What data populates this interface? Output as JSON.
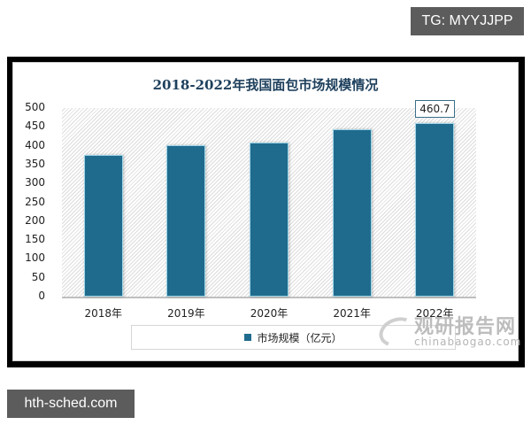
{
  "overlay": {
    "top_tag": "TG: MYYJJPP",
    "bottom_tag": "hth-sched.com"
  },
  "watermark": {
    "cn": "观研报告网",
    "en": "chinabaogao.com"
  },
  "colors": {
    "bar": "#1f6b8e",
    "title": "#1d3f5c",
    "frame": "#000000"
  },
  "chart_data": {
    "type": "bar",
    "title": "2018-2022年我国面包市场规模情况",
    "categories": [
      "2018年",
      "2019年",
      "2020年",
      "2021年",
      "2022年"
    ],
    "series": [
      {
        "name": "市场规模（亿元）",
        "values": [
          376,
          402,
          409,
          444,
          460.7
        ]
      }
    ],
    "data_labels": [
      {
        "category": "2022年",
        "text": "460.7"
      }
    ],
    "yticks": [
      "0",
      "50",
      "100",
      "150",
      "200",
      "250",
      "300",
      "350",
      "400",
      "450",
      "500"
    ],
    "ylim": [
      0,
      500
    ],
    "xlabel": "",
    "ylabel": "",
    "grid": false,
    "legend_position": "bottom"
  }
}
